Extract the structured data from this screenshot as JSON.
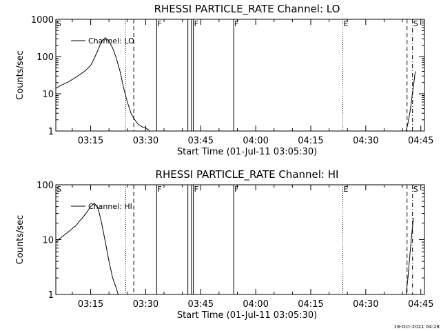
{
  "stamp": "18-Oct-2021 04:28",
  "chart_data": [
    {
      "type": "line",
      "title": "RHESSI PARTICLE_RATE Channel: LO",
      "xlabel": "Start Time (01-Jul-11 03:05:30)",
      "ylabel": "Counts/sec",
      "yscale": "log",
      "ylim": [
        1,
        1000
      ],
      "yticks": [
        1,
        10,
        100,
        1000
      ],
      "yticklabels": [
        "1",
        "10",
        "100",
        "1000"
      ],
      "xlim": [
        "03:05:30",
        "04:46:00"
      ],
      "xticks": [
        "03:15",
        "03:30",
        "03:45",
        "04:00",
        "04:15",
        "04:30",
        "04:45"
      ],
      "series": [
        {
          "name": "Channel: LO",
          "x": [
            "03:05:30",
            "03:07",
            "03:09",
            "03:11",
            "03:13",
            "03:14",
            "03:15",
            "03:16",
            "03:17",
            "03:18",
            "03:19",
            "03:20",
            "03:21",
            "03:22",
            "03:23",
            "03:24",
            "03:25",
            "03:26",
            "03:27",
            "03:28",
            "03:29",
            "03:30",
            "03:31"
          ],
          "values": [
            14,
            17,
            21,
            28,
            38,
            46,
            58,
            90,
            150,
            260,
            320,
            260,
            170,
            90,
            40,
            14,
            6,
            3,
            2,
            1.5,
            1.3,
            1.2,
            1.05
          ]
        },
        {
          "name": "Channel: LO",
          "x": [
            "04:41:00",
            "04:41:30",
            "04:42:00",
            "04:42:30",
            "04:43:00",
            "04:43:30"
          ],
          "values": [
            1,
            1.6,
            3,
            7,
            16,
            40
          ]
        }
      ],
      "markers": [
        {
          "label": "S",
          "x": "03:05:30",
          "style": "none"
        },
        {
          "label": "",
          "x": "03:24:30",
          "style": "dotted"
        },
        {
          "label": "",
          "x": "03:26:45",
          "style": "dashed"
        },
        {
          "label": "F",
          "x": "03:33:00",
          "style": "solid"
        },
        {
          "label": "",
          "x": "03:41:30",
          "style": "solid"
        },
        {
          "label": "",
          "x": "03:42:30",
          "style": "solid"
        },
        {
          "label": "F",
          "x": "03:43:00",
          "style": "solid"
        },
        {
          "label": "F",
          "x": "03:54:00",
          "style": "solid"
        },
        {
          "label": "E",
          "x": "04:23:45",
          "style": "dotted"
        },
        {
          "label": "",
          "x": "04:41:15",
          "style": "dashed"
        },
        {
          "label": "S",
          "x": "04:42:45",
          "style": "dashdot"
        }
      ]
    },
    {
      "type": "line",
      "title": "RHESSI PARTICLE_RATE Channel: HI",
      "xlabel": "Start Time (01-Jul-11 03:05:30)",
      "ylabel": "Counts/sec",
      "yscale": "log",
      "ylim": [
        1,
        100
      ],
      "yticks": [
        1,
        10,
        100
      ],
      "yticklabels": [
        "1",
        "10",
        "100"
      ],
      "xlim": [
        "03:05:30",
        "04:46:00"
      ],
      "xticks": [
        "03:15",
        "03:30",
        "03:45",
        "04:00",
        "04:15",
        "04:30",
        "04:45"
      ],
      "series": [
        {
          "name": "Channel: HI",
          "x": [
            "03:05:30",
            "03:07",
            "03:09",
            "03:11",
            "03:12",
            "03:13",
            "03:14",
            "03:15",
            "03:16",
            "03:17",
            "03:18",
            "03:19",
            "03:20",
            "03:21",
            "03:22",
            "03:22:30"
          ],
          "values": [
            9,
            11,
            14,
            18,
            22,
            26,
            32,
            40,
            46,
            38,
            20,
            9,
            4,
            2,
            1.3,
            1
          ]
        },
        {
          "name": "Channel: HI",
          "x": [
            "04:41:00",
            "04:41:30",
            "04:42:00",
            "04:42:30",
            "04:43:00"
          ],
          "values": [
            1,
            2,
            5,
            12,
            25
          ]
        }
      ],
      "markers": [
        {
          "label": "S",
          "x": "03:05:30",
          "style": "none"
        },
        {
          "label": "",
          "x": "03:24:30",
          "style": "dotted"
        },
        {
          "label": "",
          "x": "03:26:45",
          "style": "dashed"
        },
        {
          "label": "F",
          "x": "03:33:00",
          "style": "solid"
        },
        {
          "label": "",
          "x": "03:41:30",
          "style": "solid"
        },
        {
          "label": "",
          "x": "03:42:30",
          "style": "solid"
        },
        {
          "label": "F",
          "x": "03:43:00",
          "style": "solid"
        },
        {
          "label": "F",
          "x": "03:54:00",
          "style": "solid"
        },
        {
          "label": "E",
          "x": "04:23:45",
          "style": "dotted"
        },
        {
          "label": "",
          "x": "04:41:15",
          "style": "dashed"
        },
        {
          "label": "S",
          "x": "04:42:45",
          "style": "dashdot"
        }
      ]
    }
  ]
}
